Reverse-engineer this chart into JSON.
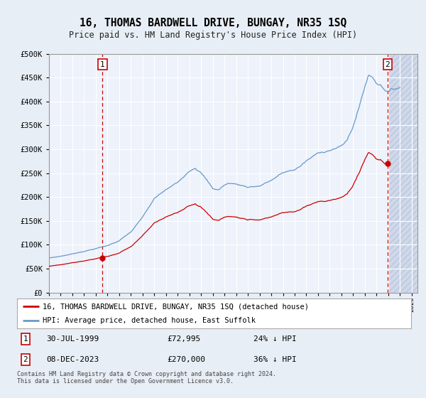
{
  "title": "16, THOMAS BARDWELL DRIVE, BUNGAY, NR35 1SQ",
  "subtitle": "Price paid vs. HM Land Registry's House Price Index (HPI)",
  "hpi_label": "HPI: Average price, detached house, East Suffolk",
  "property_label": "16, THOMAS BARDWELL DRIVE, BUNGAY, NR35 1SQ (detached house)",
  "annotation1_date": "30-JUL-1999",
  "annotation1_price": "£72,995",
  "annotation1_hpi": "24% ↓ HPI",
  "annotation2_date": "08-DEC-2023",
  "annotation2_price": "£270,000",
  "annotation2_hpi": "36% ↓ HPI",
  "sale1_year": 1999.58,
  "sale1_price": 72995,
  "sale2_year": 2023.93,
  "sale2_price": 270000,
  "hpi_color": "#6699cc",
  "property_color": "#cc0000",
  "annotation_color": "#cc0000",
  "bg_color": "#e8eef5",
  "plot_bg_color": "#eef2fa",
  "grid_color": "#ffffff",
  "ylim_max": 500000,
  "ylim_min": 0,
  "xmin": 1995.0,
  "xmax": 2026.5,
  "footer": "Contains HM Land Registry data © Crown copyright and database right 2024.\nThis data is licensed under the Open Government Licence v3.0.",
  "hatch_color": "#d0d8ea"
}
